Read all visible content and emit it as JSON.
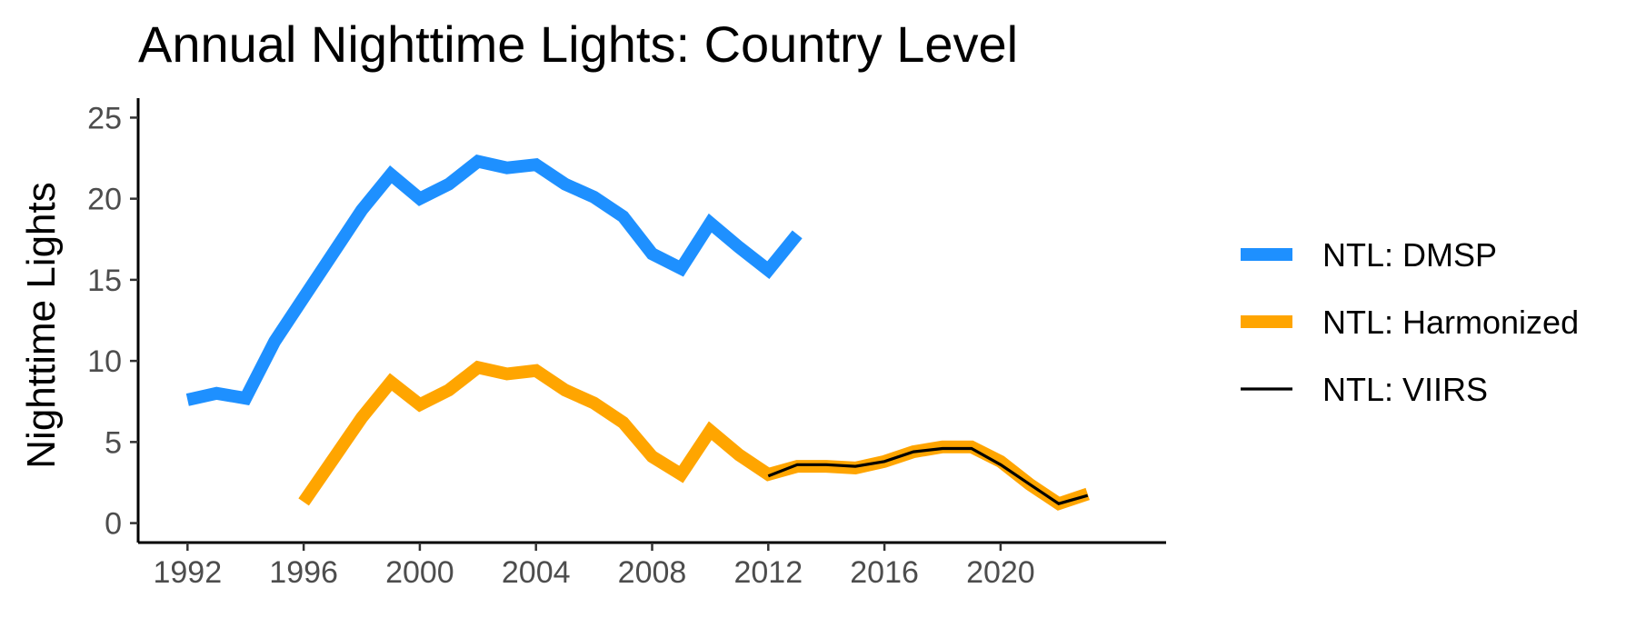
{
  "chart_data": {
    "type": "line",
    "title": "Annual Nighttime Lights: Country Level",
    "xlabel": "",
    "ylabel": "Nighttime Lights",
    "xlim": [
      1990.3,
      2025.7
    ],
    "ylim": [
      -1.2,
      26.2
    ],
    "x_ticks": [
      1992,
      1996,
      2000,
      2004,
      2008,
      2012,
      2016,
      2020
    ],
    "y_ticks": [
      0,
      5,
      10,
      15,
      20,
      25
    ],
    "grid": false,
    "legend_position": "right",
    "series": [
      {
        "name": "NTL: DMSP",
        "color": "#1E90FF",
        "x": [
          1992,
          1993,
          1994,
          1995,
          1996,
          1997,
          1998,
          1999,
          2000,
          2001,
          2002,
          2003,
          2004,
          2005,
          2006,
          2007,
          2008,
          2009,
          2010,
          2011,
          2012,
          2013
        ],
        "values": [
          7.6,
          8.0,
          7.7,
          11.2,
          13.9,
          16.6,
          19.3,
          21.5,
          20.0,
          20.9,
          22.3,
          21.9,
          22.1,
          20.9,
          20.1,
          18.9,
          16.6,
          15.7,
          18.5,
          17.0,
          15.6,
          17.8
        ]
      },
      {
        "name": "NTL: Harmonized",
        "color": "#FFA500",
        "x": [
          1996,
          1997,
          1998,
          1999,
          2000,
          2001,
          2002,
          2003,
          2004,
          2005,
          2006,
          2007,
          2008,
          2009,
          2010,
          2011,
          2012,
          2013,
          2014,
          2015,
          2016,
          2017,
          2018,
          2019,
          2020,
          2021,
          2022,
          2023
        ],
        "values": [
          1.3,
          3.9,
          6.5,
          8.7,
          7.3,
          8.2,
          9.6,
          9.2,
          9.4,
          8.2,
          7.4,
          6.2,
          4.1,
          3.0,
          5.7,
          4.2,
          3.0,
          3.5,
          3.5,
          3.4,
          3.8,
          4.4,
          4.7,
          4.7,
          3.8,
          2.4,
          1.2,
          1.8
        ]
      },
      {
        "name": "NTL: VIIRS",
        "color": "#000000",
        "x": [
          2012,
          2013,
          2014,
          2015,
          2016,
          2017,
          2018,
          2019,
          2020,
          2021,
          2022,
          2023
        ],
        "values": [
          2.9,
          3.6,
          3.6,
          3.5,
          3.8,
          4.4,
          4.6,
          4.6,
          3.6,
          2.4,
          1.2,
          1.7
        ]
      }
    ]
  }
}
